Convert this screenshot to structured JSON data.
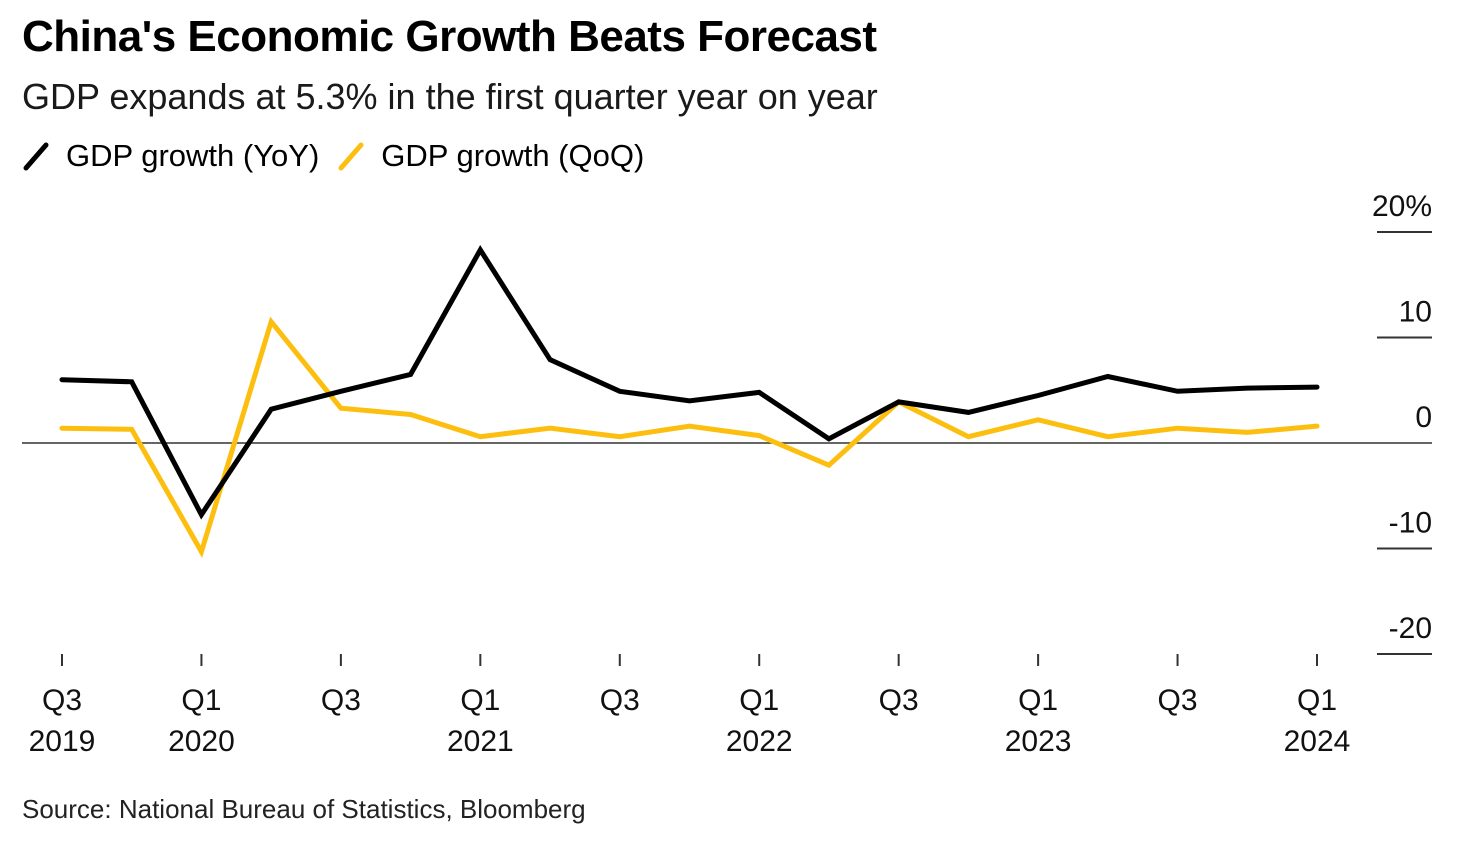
{
  "title": "China's Economic Growth Beats Forecast",
  "subtitle": "GDP expands at 5.3% in the first quarter year on year",
  "source": "Source: National Bureau of Statistics, Bloomberg",
  "colors": {
    "yoy": "#000000",
    "qoq": "#FDBF0F",
    "axis": "#333333"
  },
  "legend": [
    {
      "label": "GDP growth (YoY)",
      "color": "#000000"
    },
    {
      "label": "GDP growth (QoQ)",
      "color": "#FDBF0F"
    }
  ],
  "chart_data": {
    "type": "line",
    "title": "China's Economic Growth Beats Forecast",
    "subtitle": "GDP expands at 5.3% in the first quarter year on year",
    "xlabel": "",
    "ylabel": "",
    "ylim": [
      -20,
      20
    ],
    "yticks": [
      20,
      10,
      0,
      -10,
      -20
    ],
    "ytick_labels": [
      "20%",
      "10",
      "0",
      "-10",
      "-20"
    ],
    "y_axis_side": "right",
    "grid": false,
    "legend_position": "top-left",
    "x": [
      "Q3 2019",
      "Q4 2019",
      "Q1 2020",
      "Q2 2020",
      "Q3 2020",
      "Q4 2020",
      "Q1 2021",
      "Q2 2021",
      "Q3 2021",
      "Q4 2021",
      "Q1 2022",
      "Q2 2022",
      "Q3 2022",
      "Q4 2022",
      "Q1 2023",
      "Q2 2023",
      "Q3 2023",
      "Q4 2023",
      "Q1 2024"
    ],
    "xticks": [
      {
        "index": 0,
        "line1": "Q3",
        "line2": "2019"
      },
      {
        "index": 2,
        "line1": "Q1",
        "line2": "2020"
      },
      {
        "index": 4,
        "line1": "Q3",
        "line2": ""
      },
      {
        "index": 6,
        "line1": "Q1",
        "line2": "2021"
      },
      {
        "index": 8,
        "line1": "Q3",
        "line2": ""
      },
      {
        "index": 10,
        "line1": "Q1",
        "line2": "2022"
      },
      {
        "index": 12,
        "line1": "Q3",
        "line2": ""
      },
      {
        "index": 14,
        "line1": "Q1",
        "line2": "2023"
      },
      {
        "index": 16,
        "line1": "Q3",
        "line2": ""
      },
      {
        "index": 18,
        "line1": "Q1",
        "line2": "2024"
      }
    ],
    "series": [
      {
        "name": "GDP growth (YoY)",
        "color": "#000000",
        "values": [
          6.0,
          5.8,
          -6.8,
          3.2,
          4.9,
          6.5,
          18.3,
          7.9,
          4.9,
          4.0,
          4.8,
          0.4,
          3.9,
          2.9,
          4.5,
          6.3,
          4.9,
          5.2,
          5.3
        ]
      },
      {
        "name": "GDP growth (QoQ)",
        "color": "#FDBF0F",
        "values": [
          1.4,
          1.3,
          -10.3,
          11.5,
          3.3,
          2.7,
          0.6,
          1.4,
          0.6,
          1.6,
          0.7,
          -2.1,
          3.9,
          0.6,
          2.2,
          0.6,
          1.4,
          1.0,
          1.6
        ]
      }
    ],
    "source": "Source: National Bureau of Statistics, Bloomberg"
  }
}
